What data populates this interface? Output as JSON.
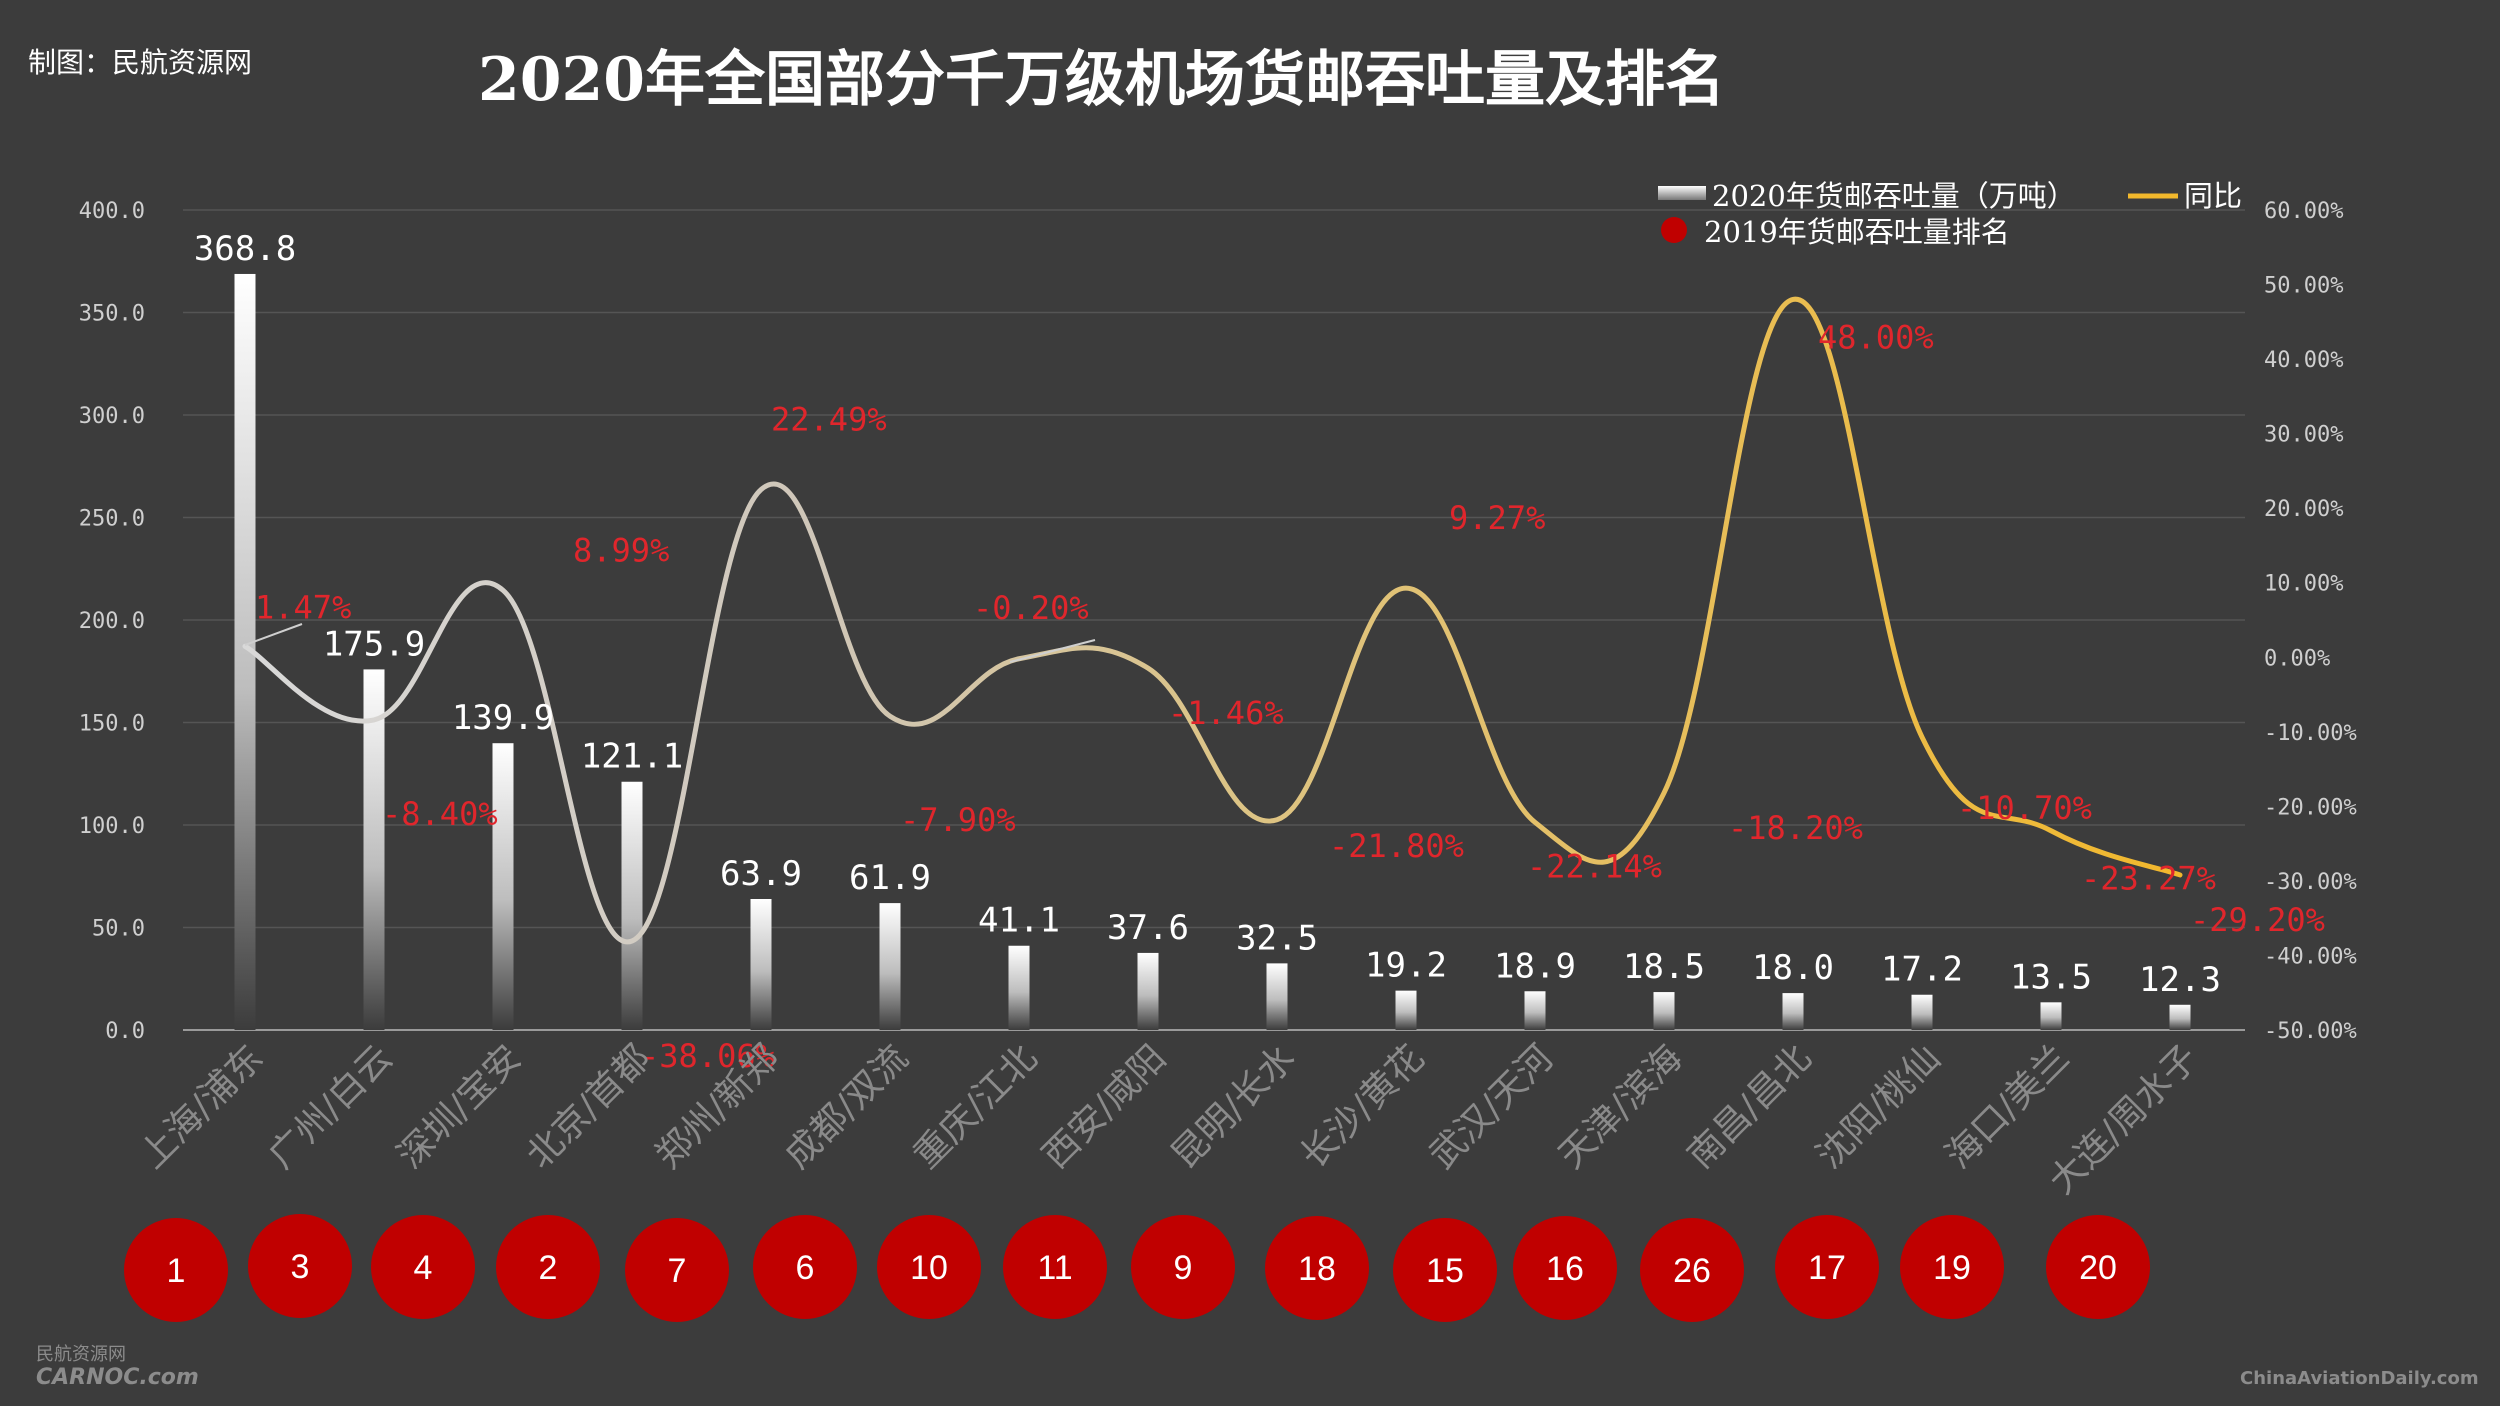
{
  "credit": "制图：民航资源网",
  "title": "2020年全国部分千万级机场货邮吞吐量及排名",
  "legend": {
    "volume": "2020年货邮吞吐量（万吨）",
    "yoy": "同比",
    "rank": "2019年货邮吞吐量排名"
  },
  "watermark_left_top": "民航资源网",
  "watermark_left": "CARNOC.com",
  "watermark_right": "ChinaAviationDaily.com",
  "colors": {
    "background": "#3c3c3c",
    "bar_top": "#ffffff",
    "bar_bottom": "#3c3c3c",
    "pct_label": "#e0262c",
    "rank_circle": "#c00000",
    "line_start": "#d9d9d9",
    "line_end": "#f2b82c"
  },
  "chart_data": {
    "type": "bar",
    "title": "2020年全国部分千万级机场货邮吞吐量及排名",
    "categories": [
      "上海/浦东",
      "广州/白云",
      "深圳/宝安",
      "北京/首都",
      "郑州/新郑",
      "成都/双流",
      "重庆/江北",
      "西安/咸阳",
      "昆明/长水",
      "长沙/黄花",
      "武汉/天河",
      "天津/滨海",
      "南昌/昌北",
      "沈阳/桃仙",
      "海口/美兰",
      "大连/周水子"
    ],
    "left_axis": {
      "ylim": [
        0,
        400
      ],
      "ticks": [
        "0.0",
        "50.0",
        "100.0",
        "150.0",
        "200.0",
        "250.0",
        "300.0",
        "350.0",
        "400.0"
      ]
    },
    "right_axis": {
      "ylim": [
        -50,
        60
      ],
      "ticks": [
        "-50.00%",
        "-40.00%",
        "-30.00%",
        "-20.00%",
        "-10.00%",
        "0.00%",
        "10.00%",
        "20.00%",
        "30.00%",
        "40.00%",
        "50.00%",
        "60.00%"
      ]
    },
    "series": [
      {
        "name": "2020年货邮吞吐量（万吨）",
        "type": "bar",
        "axis": "left",
        "values": [
          368.8,
          175.9,
          139.9,
          121.1,
          63.9,
          61.9,
          41.1,
          37.6,
          32.5,
          19.2,
          18.9,
          18.5,
          18.0,
          17.2,
          13.5,
          12.3
        ],
        "labels": [
          "368.8",
          "175.9",
          "139.9",
          "121.1",
          "63.9",
          "61.9",
          "41.1",
          "37.6",
          "32.5",
          "19.2",
          "18.9",
          "18.5",
          "18.0",
          "17.2",
          "13.5",
          "12.3"
        ]
      },
      {
        "name": "同比",
        "type": "line",
        "axis": "right",
        "values": [
          1.47,
          -8.4,
          8.99,
          -38.06,
          22.49,
          -7.9,
          -0.2,
          -1.46,
          -21.8,
          9.27,
          -22.14,
          -18.2,
          48.0,
          -10.7,
          -23.27,
          -29.2
        ],
        "labels": [
          "1.47%",
          "-8.40%",
          "8.99%",
          "-38.06%",
          "22.49%",
          "-7.90%",
          "-0.20%",
          "-1.46%",
          "-21.80%",
          "9.27%",
          "-22.14%",
          "-18.20%",
          "48.00%",
          "-10.70%",
          "-23.27%",
          "-29.20%"
        ]
      },
      {
        "name": "2019年货邮吞吐量排名",
        "type": "marker",
        "values": [
          1,
          3,
          4,
          2,
          7,
          6,
          10,
          11,
          9,
          18,
          15,
          16,
          26,
          17,
          19,
          20
        ],
        "labels": [
          "1",
          "3",
          "4",
          "2",
          "7",
          "6",
          "10",
          "11",
          "9",
          "18",
          "15",
          "16",
          "26",
          "17",
          "19",
          "20"
        ]
      }
    ],
    "grid": true,
    "legend_position": "top-right"
  }
}
